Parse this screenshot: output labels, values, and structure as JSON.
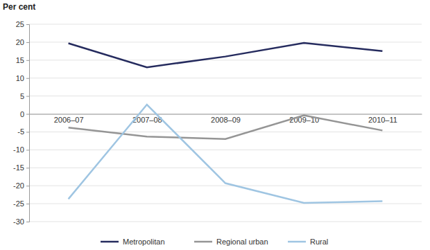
{
  "chart_data": {
    "type": "line",
    "y_label": "Per cent",
    "categories": [
      "2006–07",
      "2007–08",
      "2008–09",
      "2009–10",
      "2010–11"
    ],
    "series": [
      {
        "name": "Metropolitan",
        "color": "#252b5e",
        "values": [
          19.7,
          13.0,
          16.0,
          19.8,
          17.5
        ]
      },
      {
        "name": "Regional urban",
        "color": "#959595",
        "values": [
          -3.8,
          -6.3,
          -7.0,
          -0.4,
          -4.6
        ]
      },
      {
        "name": "Rural",
        "color": "#9fc5e2",
        "values": [
          -23.7,
          2.6,
          -19.3,
          -24.8,
          -24.3
        ]
      }
    ],
    "ylim": [
      -30,
      25
    ],
    "yticks": [
      -30,
      -25,
      -20,
      -15,
      -10,
      -5,
      0,
      5,
      10,
      15,
      20,
      25
    ],
    "grid": true,
    "legend": "bottom"
  }
}
